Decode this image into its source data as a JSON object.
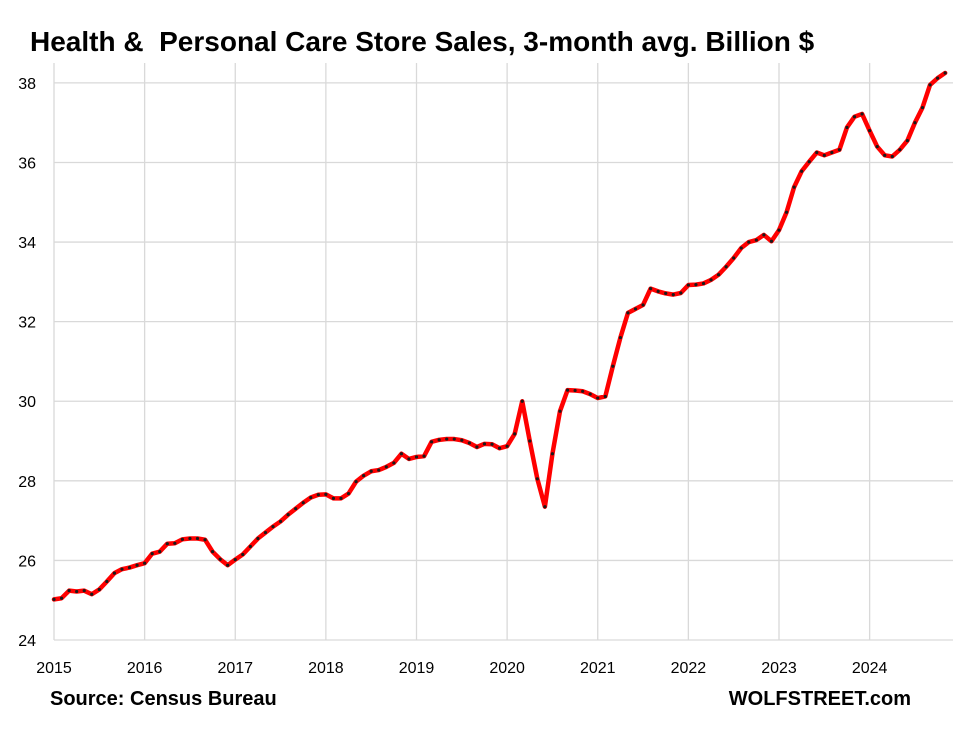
{
  "title": "Health &  Personal Care Store Sales, 3-month avg. Billion $",
  "source": "Source: Census Bureau",
  "site": "WOLFSTREET.com",
  "colors": {
    "line": "#ff0000",
    "marker": "#1a1a1a",
    "grid": "#d9d9d9"
  },
  "chart_data": {
    "type": "line",
    "title": "Health &  Personal Care Store Sales, 3-month avg. Billion $",
    "xlabel": "",
    "ylabel": "",
    "xlim": [
      2015,
      2024.92
    ],
    "ylim": [
      24,
      38.5
    ],
    "x_ticks": [
      "2015",
      "2016",
      "2017",
      "2018",
      "2019",
      "2020",
      "2021",
      "2022",
      "2023",
      "2024"
    ],
    "y_ticks": [
      24,
      26,
      28,
      30,
      32,
      34,
      36,
      38
    ],
    "grid": true,
    "legend": "none",
    "series": [
      {
        "x_start": "2015-01",
        "frequency": "monthly",
        "values": [
          25.02,
          25.05,
          25.24,
          25.22,
          25.24,
          25.15,
          25.27,
          25.47,
          25.68,
          25.78,
          25.82,
          25.88,
          25.93,
          26.17,
          26.22,
          26.42,
          26.43,
          26.53,
          26.55,
          26.55,
          26.52,
          26.22,
          26.03,
          25.88,
          26.02,
          26.15,
          26.35,
          26.55,
          26.7,
          26.85,
          26.98,
          27.15,
          27.3,
          27.45,
          27.58,
          27.65,
          27.66,
          27.56,
          27.56,
          27.68,
          27.98,
          28.13,
          28.24,
          28.27,
          28.35,
          28.45,
          28.68,
          28.55,
          28.6,
          28.62,
          28.98,
          29.03,
          29.05,
          29.05,
          29.02,
          28.95,
          28.85,
          28.93,
          28.92,
          28.82,
          28.87,
          29.18,
          30.0,
          29.0,
          28.05,
          27.35,
          28.68,
          29.75,
          30.28,
          30.27,
          30.25,
          30.18,
          30.08,
          30.12,
          30.88,
          31.6,
          32.22,
          32.32,
          32.42,
          32.83,
          32.76,
          32.71,
          32.68,
          32.72,
          32.92,
          32.93,
          32.96,
          33.05,
          33.18,
          33.38,
          33.6,
          33.85,
          34.0,
          34.05,
          34.18,
          34.02,
          34.3,
          34.75,
          35.38,
          35.78,
          36.02,
          36.25,
          36.18,
          36.25,
          36.32,
          36.88,
          37.15,
          37.22,
          36.8,
          36.4,
          36.18,
          36.15,
          36.32,
          36.55,
          37.0,
          37.38,
          37.95,
          38.12,
          38.25
        ]
      }
    ]
  }
}
